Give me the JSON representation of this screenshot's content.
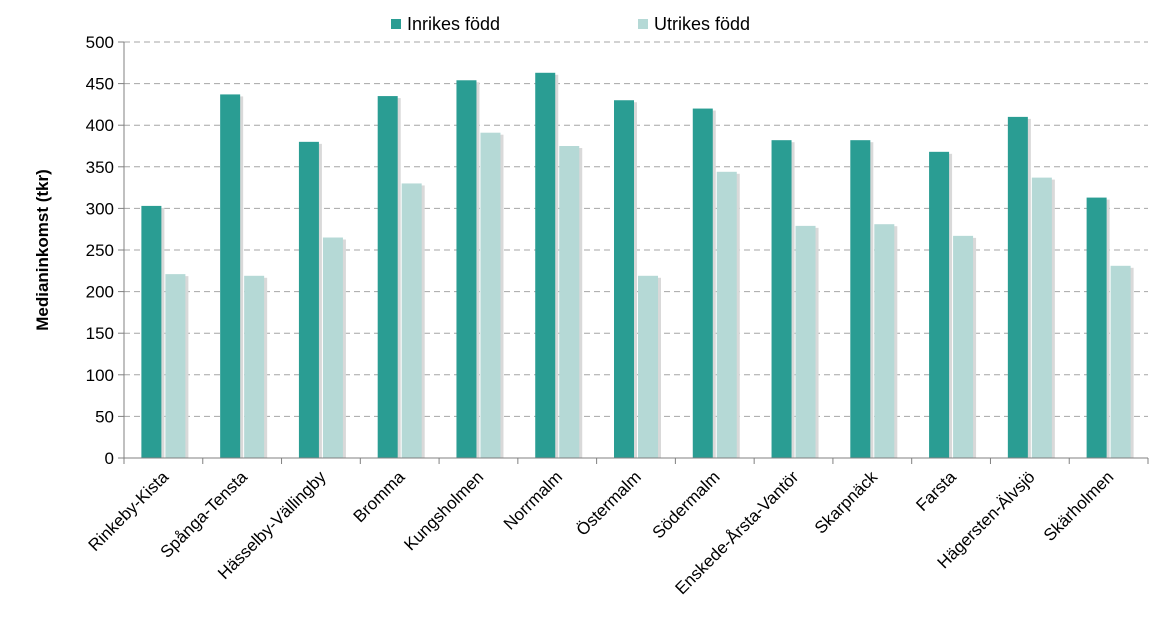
{
  "chart_data": {
    "type": "bar",
    "title": "",
    "xlabel": "",
    "ylabel": "Medianinkomst (tkr)",
    "ylim": [
      0,
      500
    ],
    "yticks": [
      0,
      50,
      100,
      150,
      200,
      250,
      300,
      350,
      400,
      450,
      500
    ],
    "grid": true,
    "legend_position": "top-center",
    "categories": [
      "Rinkeby-Kista",
      "Spånga-Tensta",
      "Hässelby-Vällingby",
      "Bromma",
      "Kungsholmen",
      "Norrmalm",
      "Östermalm",
      "Södermalm",
      "Enskede-Årsta-Vantör",
      "Skarpnäck",
      "Farsta",
      "Hägersten-Älvsjö",
      "Skärholmen"
    ],
    "series": [
      {
        "name": "Inrikes född",
        "color": "#2a9d93",
        "values": [
          303,
          437,
          380,
          435,
          454,
          463,
          430,
          420,
          382,
          382,
          368,
          410,
          313
        ]
      },
      {
        "name": "Utrikes född",
        "color": "#b5d9d6",
        "values": [
          221,
          219,
          265,
          330,
          391,
          375,
          219,
          344,
          279,
          281,
          267,
          337,
          231
        ]
      }
    ]
  }
}
